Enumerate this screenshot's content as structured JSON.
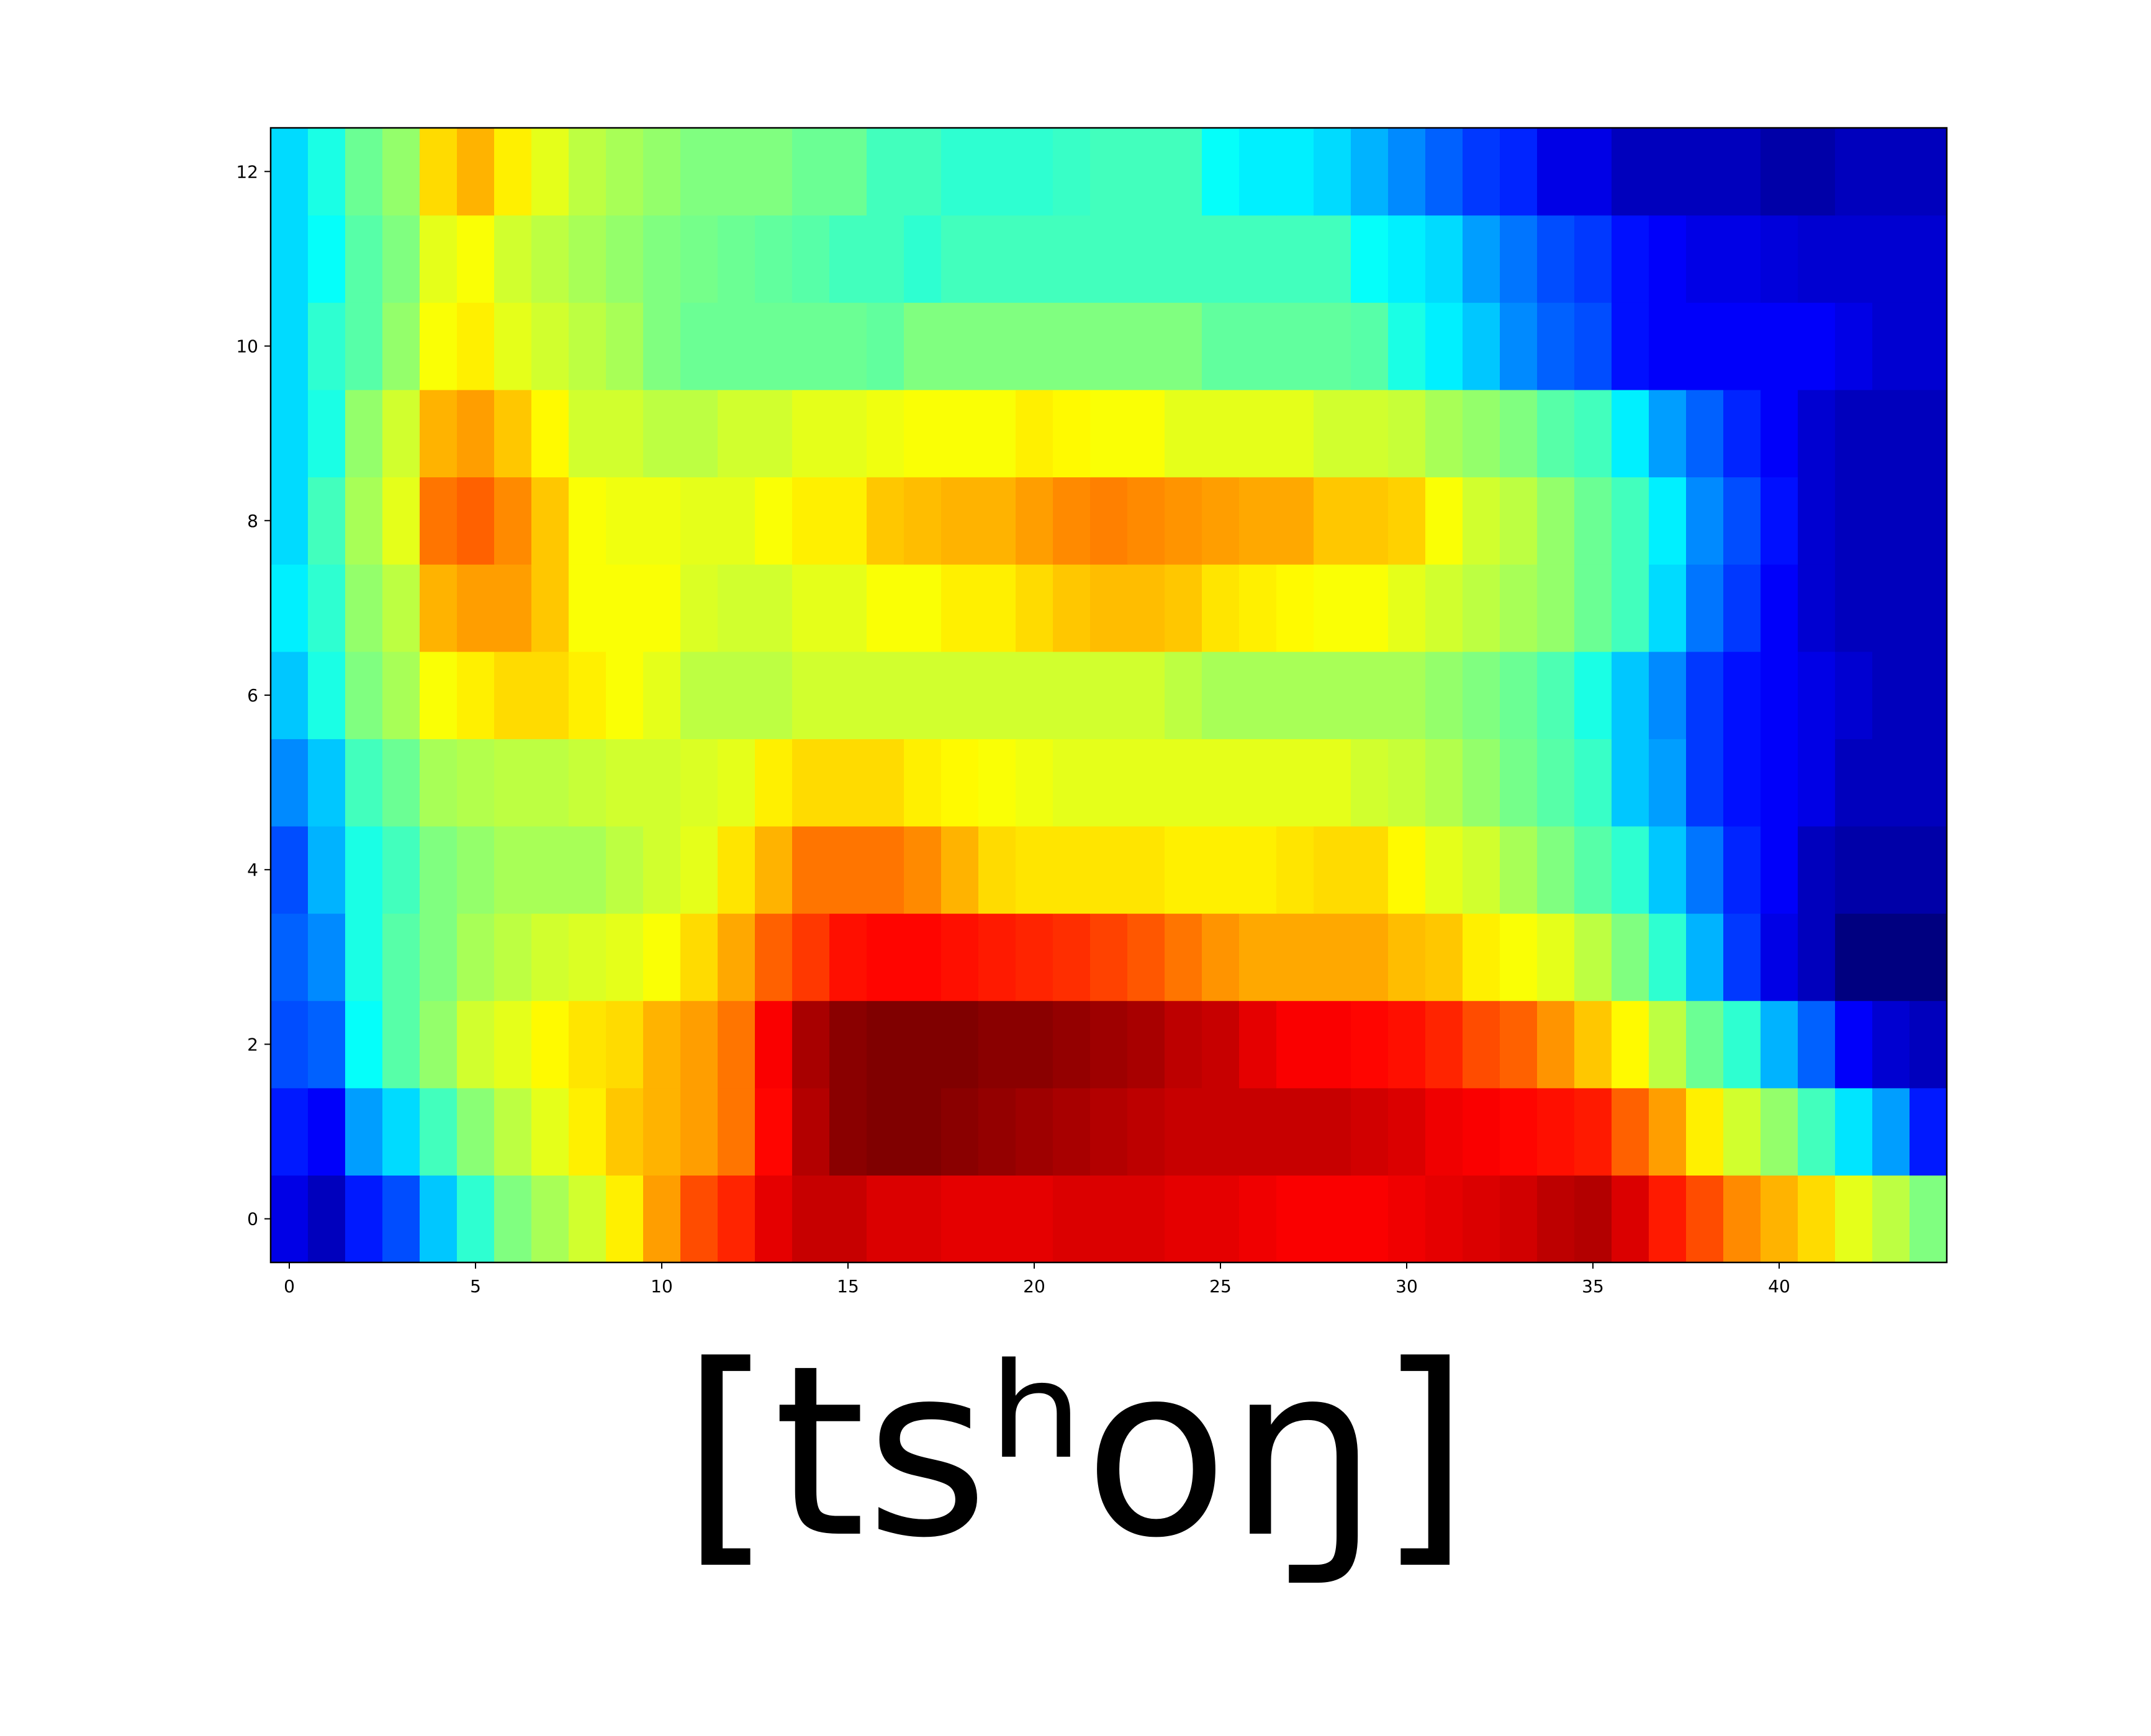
{
  "chart_data": {
    "type": "heatmap",
    "title": "",
    "xlabel": "",
    "ylabel": "",
    "colormap": "jet",
    "value_range": [
      0,
      1
    ],
    "n_cols": 45,
    "n_rows": 13,
    "xlim": [
      -0.5,
      44.5
    ],
    "ylim": [
      -0.5,
      12.5
    ],
    "x_ticks": [
      0,
      5,
      10,
      15,
      20,
      25,
      30,
      35,
      40
    ],
    "y_ticks": [
      0,
      2,
      4,
      6,
      8,
      10,
      12
    ],
    "row_order": "row 0 at bottom",
    "values": [
      [
        0.1,
        0.06,
        0.15,
        0.2,
        0.32,
        0.42,
        0.5,
        0.54,
        0.58,
        0.64,
        0.72,
        0.8,
        0.84,
        0.9,
        0.93,
        0.93,
        0.91,
        0.91,
        0.9,
        0.9,
        0.9,
        0.91,
        0.91,
        0.91,
        0.9,
        0.9,
        0.89,
        0.88,
        0.88,
        0.88,
        0.89,
        0.9,
        0.91,
        0.92,
        0.94,
        0.95,
        0.91,
        0.85,
        0.8,
        0.74,
        0.7,
        0.66,
        0.6,
        0.56,
        0.5
      ],
      [
        0.15,
        0.12,
        0.28,
        0.34,
        0.44,
        0.51,
        0.56,
        0.6,
        0.64,
        0.68,
        0.7,
        0.72,
        0.76,
        0.87,
        0.95,
        0.99,
        1.0,
        1.0,
        0.99,
        0.98,
        0.97,
        0.96,
        0.95,
        0.94,
        0.93,
        0.93,
        0.93,
        0.93,
        0.93,
        0.92,
        0.91,
        0.89,
        0.88,
        0.87,
        0.86,
        0.85,
        0.78,
        0.72,
        0.64,
        0.58,
        0.52,
        0.44,
        0.35,
        0.28,
        0.15
      ],
      [
        0.2,
        0.22,
        0.38,
        0.46,
        0.52,
        0.58,
        0.6,
        0.63,
        0.65,
        0.66,
        0.7,
        0.72,
        0.76,
        0.88,
        0.96,
        0.99,
        1.0,
        1.0,
        1.0,
        0.99,
        0.99,
        0.98,
        0.97,
        0.96,
        0.94,
        0.93,
        0.9,
        0.88,
        0.88,
        0.87,
        0.86,
        0.84,
        0.8,
        0.78,
        0.73,
        0.68,
        0.63,
        0.56,
        0.48,
        0.42,
        0.3,
        0.22,
        0.12,
        0.08,
        0.06
      ],
      [
        0.22,
        0.26,
        0.4,
        0.46,
        0.5,
        0.54,
        0.56,
        0.58,
        0.59,
        0.6,
        0.62,
        0.66,
        0.71,
        0.78,
        0.82,
        0.86,
        0.87,
        0.87,
        0.86,
        0.85,
        0.84,
        0.83,
        0.81,
        0.79,
        0.76,
        0.73,
        0.71,
        0.71,
        0.71,
        0.71,
        0.69,
        0.68,
        0.64,
        0.62,
        0.6,
        0.56,
        0.5,
        0.42,
        0.3,
        0.18,
        0.1,
        0.06,
        0.0,
        0.0,
        0.0
      ],
      [
        0.2,
        0.3,
        0.4,
        0.44,
        0.5,
        0.52,
        0.54,
        0.54,
        0.54,
        0.56,
        0.58,
        0.6,
        0.65,
        0.7,
        0.76,
        0.76,
        0.76,
        0.74,
        0.7,
        0.66,
        0.65,
        0.65,
        0.65,
        0.65,
        0.64,
        0.64,
        0.64,
        0.65,
        0.66,
        0.66,
        0.63,
        0.6,
        0.58,
        0.54,
        0.5,
        0.46,
        0.42,
        0.32,
        0.24,
        0.16,
        0.12,
        0.06,
        0.04,
        0.04,
        0.04
      ],
      [
        0.26,
        0.32,
        0.44,
        0.48,
        0.54,
        0.55,
        0.56,
        0.56,
        0.57,
        0.58,
        0.58,
        0.59,
        0.6,
        0.64,
        0.66,
        0.66,
        0.66,
        0.64,
        0.63,
        0.62,
        0.61,
        0.6,
        0.6,
        0.6,
        0.6,
        0.6,
        0.6,
        0.6,
        0.6,
        0.58,
        0.57,
        0.55,
        0.52,
        0.49,
        0.46,
        0.43,
        0.32,
        0.28,
        0.18,
        0.14,
        0.12,
        0.1,
        0.06,
        0.06,
        0.06
      ],
      [
        0.32,
        0.4,
        0.5,
        0.54,
        0.62,
        0.64,
        0.66,
        0.66,
        0.64,
        0.62,
        0.6,
        0.56,
        0.56,
        0.56,
        0.58,
        0.58,
        0.58,
        0.58,
        0.58,
        0.58,
        0.58,
        0.58,
        0.58,
        0.58,
        0.56,
        0.54,
        0.54,
        0.54,
        0.54,
        0.54,
        0.54,
        0.52,
        0.5,
        0.48,
        0.45,
        0.4,
        0.32,
        0.26,
        0.18,
        0.14,
        0.12,
        0.1,
        0.08,
        0.06,
        0.06
      ],
      [
        0.36,
        0.42,
        0.52,
        0.56,
        0.7,
        0.72,
        0.72,
        0.68,
        0.62,
        0.62,
        0.62,
        0.59,
        0.58,
        0.58,
        0.6,
        0.6,
        0.62,
        0.62,
        0.64,
        0.64,
        0.66,
        0.68,
        0.69,
        0.69,
        0.68,
        0.65,
        0.64,
        0.63,
        0.62,
        0.62,
        0.6,
        0.58,
        0.56,
        0.54,
        0.52,
        0.48,
        0.44,
        0.34,
        0.24,
        0.18,
        0.12,
        0.08,
        0.06,
        0.06,
        0.06
      ],
      [
        0.34,
        0.44,
        0.54,
        0.6,
        0.76,
        0.78,
        0.74,
        0.68,
        0.62,
        0.61,
        0.61,
        0.6,
        0.6,
        0.62,
        0.64,
        0.64,
        0.68,
        0.69,
        0.7,
        0.7,
        0.72,
        0.74,
        0.75,
        0.74,
        0.73,
        0.72,
        0.71,
        0.71,
        0.68,
        0.68,
        0.67,
        0.62,
        0.58,
        0.56,
        0.52,
        0.48,
        0.44,
        0.36,
        0.26,
        0.2,
        0.14,
        0.08,
        0.06,
        0.06,
        0.06
      ],
      [
        0.34,
        0.4,
        0.52,
        0.58,
        0.7,
        0.72,
        0.68,
        0.63,
        0.58,
        0.58,
        0.56,
        0.56,
        0.58,
        0.58,
        0.6,
        0.6,
        0.61,
        0.62,
        0.62,
        0.62,
        0.64,
        0.63,
        0.62,
        0.62,
        0.6,
        0.6,
        0.6,
        0.6,
        0.58,
        0.58,
        0.57,
        0.54,
        0.52,
        0.5,
        0.46,
        0.44,
        0.36,
        0.28,
        0.22,
        0.16,
        0.12,
        0.08,
        0.06,
        0.06,
        0.06
      ],
      [
        0.34,
        0.42,
        0.46,
        0.52,
        0.62,
        0.64,
        0.6,
        0.58,
        0.56,
        0.54,
        0.5,
        0.48,
        0.48,
        0.48,
        0.48,
        0.48,
        0.47,
        0.5,
        0.5,
        0.5,
        0.5,
        0.5,
        0.5,
        0.5,
        0.5,
        0.47,
        0.47,
        0.47,
        0.47,
        0.46,
        0.4,
        0.36,
        0.32,
        0.26,
        0.22,
        0.2,
        0.14,
        0.12,
        0.12,
        0.12,
        0.12,
        0.12,
        0.1,
        0.08,
        0.08
      ],
      [
        0.34,
        0.38,
        0.46,
        0.5,
        0.6,
        0.62,
        0.58,
        0.56,
        0.54,
        0.52,
        0.5,
        0.49,
        0.48,
        0.47,
        0.46,
        0.44,
        0.44,
        0.42,
        0.44,
        0.44,
        0.44,
        0.44,
        0.44,
        0.44,
        0.44,
        0.44,
        0.44,
        0.44,
        0.44,
        0.38,
        0.36,
        0.34,
        0.28,
        0.24,
        0.2,
        0.18,
        0.14,
        0.12,
        0.1,
        0.1,
        0.09,
        0.08,
        0.08,
        0.08,
        0.08
      ],
      [
        0.34,
        0.4,
        0.48,
        0.52,
        0.66,
        0.7,
        0.64,
        0.6,
        0.56,
        0.54,
        0.52,
        0.5,
        0.5,
        0.5,
        0.48,
        0.48,
        0.44,
        0.44,
        0.42,
        0.42,
        0.42,
        0.43,
        0.44,
        0.44,
        0.44,
        0.38,
        0.36,
        0.36,
        0.34,
        0.3,
        0.26,
        0.22,
        0.18,
        0.16,
        0.1,
        0.1,
        0.06,
        0.06,
        0.06,
        0.06,
        0.04,
        0.04,
        0.06,
        0.06,
        0.06
      ]
    ]
  },
  "caption": "[tsʰoŋ]"
}
